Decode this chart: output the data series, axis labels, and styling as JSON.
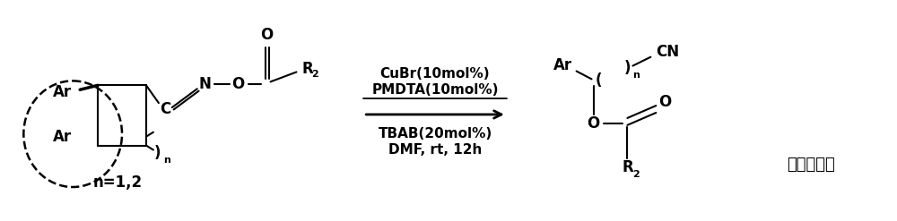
{
  "bg_color": "#ffffff",
  "fig_width": 10.0,
  "fig_height": 2.47,
  "dpi": 100,
  "text_color": "#000000",
  "reagents_line1": "CuBr(10mol%)",
  "reagents_line2": "PMDTA(10mol%)",
  "reagents_line3": "TBAB(20mol%)",
  "reagents_line4": "DMF, rt, 12h",
  "label_n": "n=1,2",
  "font_size_main": 12,
  "font_size_sub": 9,
  "font_size_reagent": 11
}
